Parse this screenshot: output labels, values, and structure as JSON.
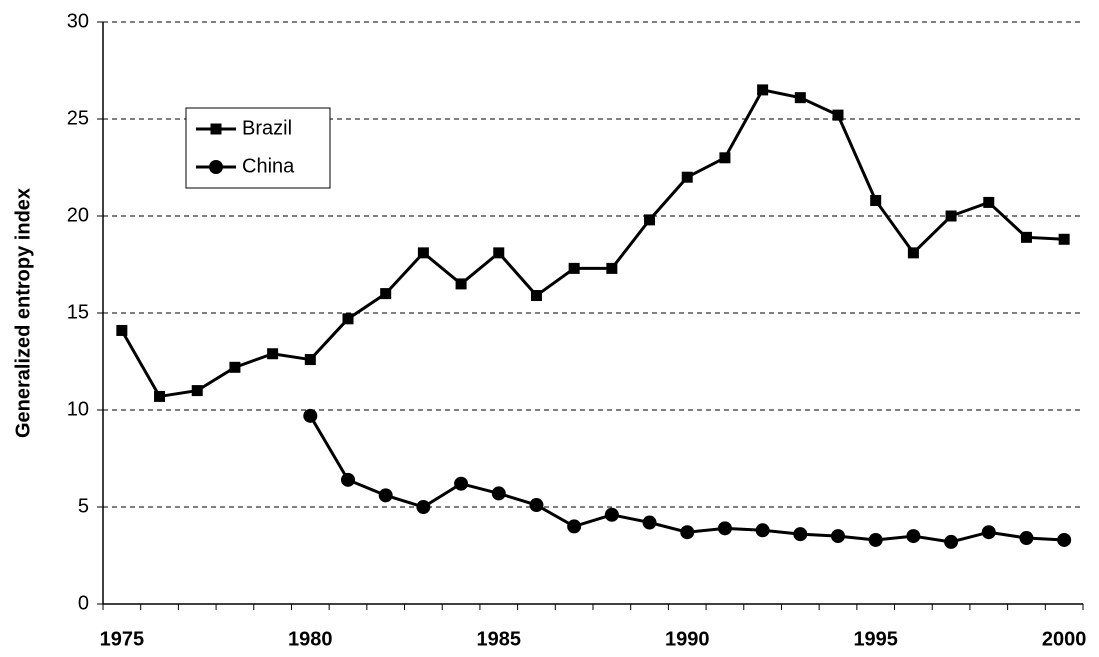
{
  "chart_data": {
    "type": "line",
    "y_label": "Generalized entropy index",
    "categories": [
      "1975",
      null,
      null,
      null,
      null,
      "1980",
      null,
      null,
      null,
      null,
      "1985",
      null,
      null,
      null,
      null,
      "1990",
      null,
      null,
      null,
      null,
      "1995",
      null,
      null,
      null,
      null,
      "2000"
    ],
    "series": [
      {
        "name": "Brazil",
        "color": "#000000",
        "marker": "square",
        "values": [
          14.1,
          10.7,
          11.0,
          12.2,
          12.9,
          12.6,
          14.7,
          16.0,
          18.1,
          16.5,
          18.1,
          15.9,
          17.3,
          17.3,
          19.8,
          22.0,
          23.0,
          26.5,
          26.1,
          25.2,
          20.8,
          18.1,
          20.0,
          20.7,
          18.9,
          18.8
        ]
      },
      {
        "name": "China",
        "color": "#000000",
        "marker": "circle",
        "values": [
          null,
          null,
          null,
          null,
          null,
          9.7,
          6.4,
          5.6,
          5.0,
          6.2,
          5.7,
          5.1,
          4.0,
          4.6,
          4.2,
          3.7,
          3.9,
          3.8,
          3.6,
          3.5,
          3.3,
          3.5,
          3.2,
          3.7,
          3.4,
          3.3
        ]
      }
    ],
    "ylim": [
      0,
      30
    ],
    "yticks": [
      0,
      5,
      10,
      15,
      20,
      25,
      30
    ],
    "grid": true,
    "legend": "upper left"
  }
}
